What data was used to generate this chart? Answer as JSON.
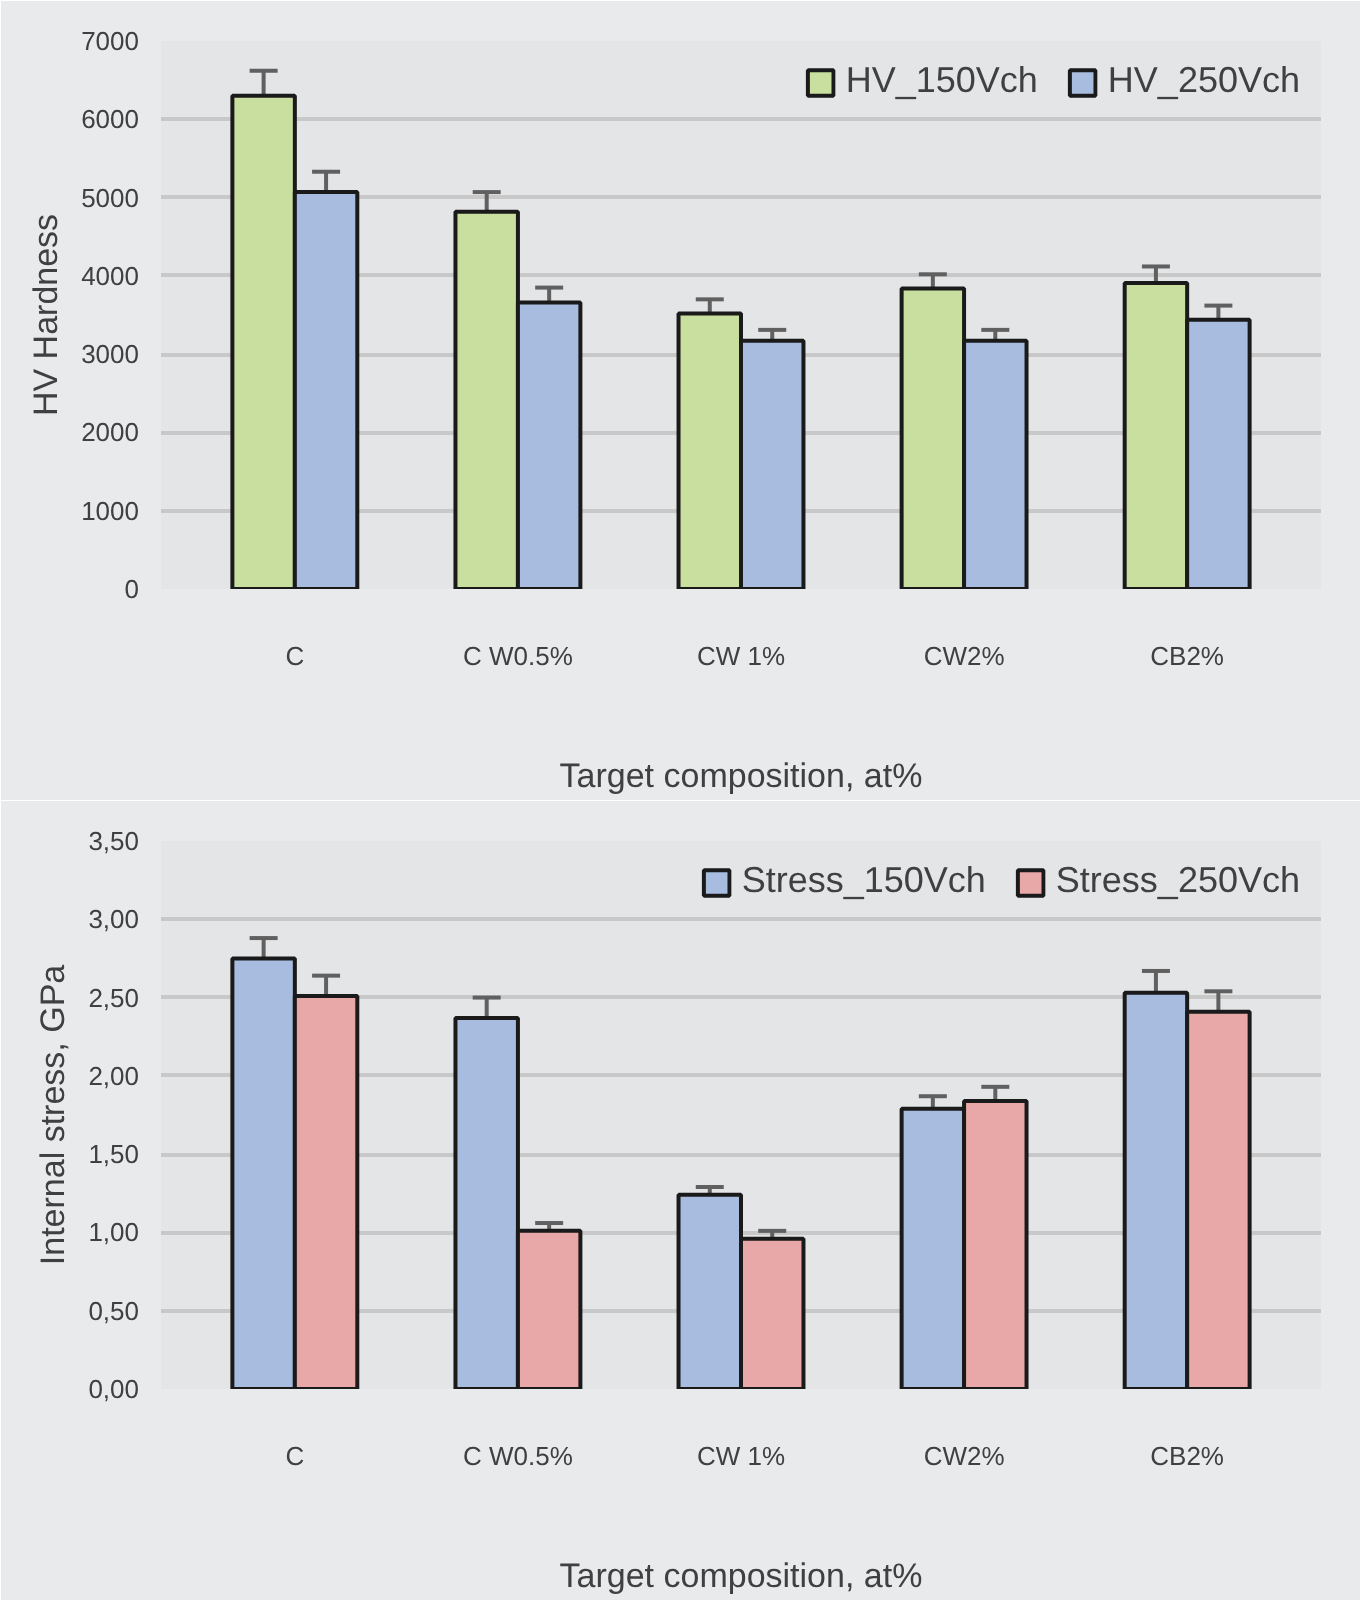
{
  "chart_data": [
    {
      "type": "bar",
      "xlabel": "Target composition, at%",
      "ylabel": "HV Hardness",
      "categories": [
        "C",
        "C W0.5%",
        "CW 1%",
        "CW2%",
        "CB2%"
      ],
      "series": [
        {
          "name": "HV_150Vch",
          "color": "#c9dfa0",
          "values": [
            6300,
            4820,
            3520,
            3840,
            3910
          ],
          "errors": [
            320,
            250,
            180,
            180,
            210
          ]
        },
        {
          "name": "HV_250Vch",
          "color": "#a8bce0",
          "values": [
            5070,
            3660,
            3170,
            3170,
            3440
          ],
          "errors": [
            260,
            190,
            140,
            140,
            180
          ]
        }
      ],
      "ylim": [
        0,
        7000
      ],
      "yticks": [
        0,
        1000,
        2000,
        3000,
        4000,
        5000,
        6000,
        7000
      ],
      "grid": "y",
      "legend": "top right"
    },
    {
      "type": "bar",
      "xlabel": "Target composition, at%",
      "ylabel": "Internal stress, GPa",
      "categories": [
        "C",
        "C W0.5%",
        "CW 1%",
        "CW2%",
        "CB2%"
      ],
      "series": [
        {
          "name": "Stress_150Vch",
          "color": "#a8bce0",
          "values": [
            2.75,
            2.37,
            1.24,
            1.79,
            2.53
          ],
          "errors": [
            0.13,
            0.13,
            0.05,
            0.08,
            0.14
          ]
        },
        {
          "name": "Stress_250Vch",
          "color": "#e8a8a8",
          "values": [
            2.51,
            1.01,
            0.96,
            1.84,
            2.41
          ],
          "errors": [
            0.13,
            0.05,
            0.05,
            0.09,
            0.13
          ]
        }
      ],
      "ylim": [
        0,
        3.5
      ],
      "yticks": [
        {
          "value": 0,
          "label": "0,00"
        },
        {
          "value": 0.5,
          "label": "0,50"
        },
        {
          "value": 1,
          "label": "1,00"
        },
        {
          "value": 1.5,
          "label": "1,50"
        },
        {
          "value": 2,
          "label": "2,00"
        },
        {
          "value": 2.5,
          "label": "2,50"
        },
        {
          "value": 3,
          "label": "3,00"
        },
        {
          "value": 3.5,
          "label": "3,50"
        }
      ],
      "grid": "y",
      "legend": "top right"
    }
  ]
}
